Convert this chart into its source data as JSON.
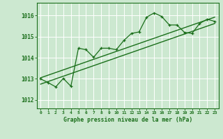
{
  "bg_color": "#cce8d0",
  "grid_color": "#b8dfc0",
  "line_color": "#1a6e1a",
  "text_color": "#1a6e1a",
  "title": "Graphe pression niveau de la mer (hPa)",
  "yticks": [
    1012,
    1013,
    1014,
    1015,
    1016
  ],
  "ylim": [
    1011.6,
    1016.6
  ],
  "xlim": [
    -0.5,
    23.5
  ],
  "main_x": [
    0,
    1,
    2,
    3,
    4,
    5,
    6,
    7,
    8,
    9,
    10,
    11,
    12,
    13,
    14,
    15,
    16,
    17,
    18,
    19,
    20,
    21,
    22,
    23
  ],
  "main_y": [
    1013.0,
    1012.82,
    1012.62,
    1013.02,
    1012.65,
    1014.45,
    1014.38,
    1014.02,
    1014.45,
    1014.45,
    1014.38,
    1014.82,
    1015.15,
    1015.22,
    1015.92,
    1016.12,
    1015.95,
    1015.55,
    1015.55,
    1015.2,
    1015.15,
    1015.62,
    1015.82,
    1015.72
  ],
  "line1_x": [
    0,
    23
  ],
  "line1_y": [
    1012.75,
    1015.62
  ],
  "line2_x": [
    0,
    23
  ],
  "line2_y": [
    1013.05,
    1015.92
  ],
  "xlabel_ticks": [
    "0",
    "1",
    "2",
    "3",
    "4",
    "5",
    "6",
    "7",
    "8",
    "9",
    "10",
    "11",
    "12",
    "13",
    "14",
    "15",
    "16",
    "17",
    "18",
    "19",
    "20",
    "21",
    "22",
    "23"
  ]
}
